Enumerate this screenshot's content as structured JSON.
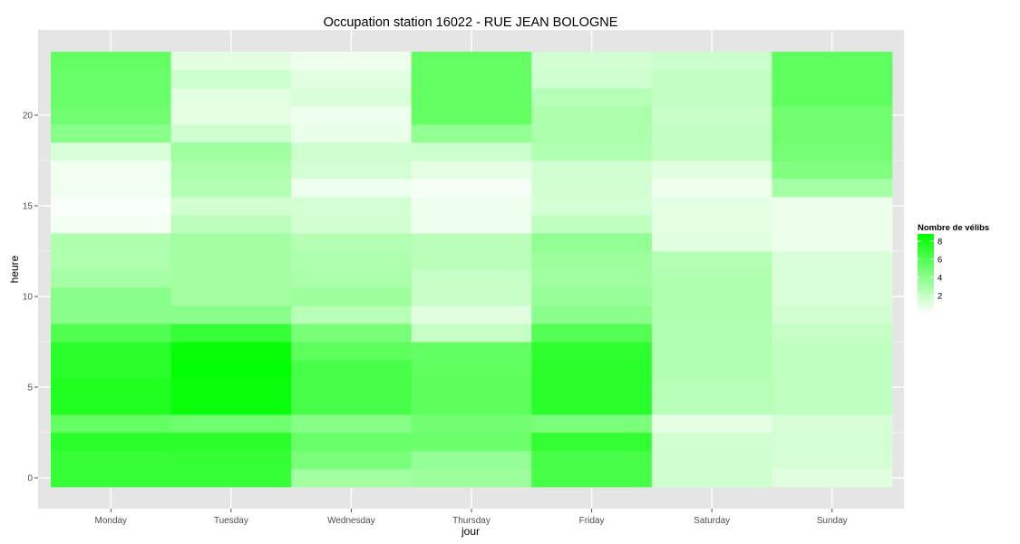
{
  "chart_data": {
    "type": "heatmap",
    "title": "Occupation station 16022 - RUE JEAN BOLOGNE",
    "xlabel": "jour",
    "ylabel": "heure",
    "x": [
      "Monday",
      "Tuesday",
      "Wednesday",
      "Thursday",
      "Friday",
      "Saturday",
      "Sunday"
    ],
    "y": [
      0,
      1,
      2,
      3,
      4,
      5,
      6,
      7,
      8,
      9,
      10,
      11,
      12,
      13,
      14,
      15,
      16,
      17,
      18,
      19,
      20,
      21,
      22,
      23
    ],
    "y_ticks": [
      0,
      5,
      10,
      15,
      20
    ],
    "ylim": [
      -0.5,
      23.5
    ],
    "grid": true,
    "values": [
      [
        6.9,
        6.9,
        3.2,
        3.4,
        6.3,
        1.7,
        1.1
      ],
      [
        6.9,
        7.0,
        4.6,
        3.7,
        6.3,
        1.7,
        1.4
      ],
      [
        7.3,
        7.3,
        5.2,
        5.1,
        7.1,
        1.6,
        1.5
      ],
      [
        5.4,
        5.0,
        4.2,
        4.9,
        4.6,
        0.9,
        1.4
      ],
      [
        7.7,
        8.5,
        6.4,
        5.6,
        7.3,
        2.5,
        2.2
      ],
      [
        7.7,
        8.5,
        6.4,
        5.6,
        7.3,
        2.5,
        2.2
      ],
      [
        7.3,
        8.7,
        6.4,
        5.5,
        7.3,
        2.7,
        2.2
      ],
      [
        7.3,
        8.6,
        5.6,
        5.4,
        7.2,
        2.7,
        2.2
      ],
      [
        6.0,
        6.9,
        4.7,
        2.0,
        5.9,
        2.7,
        2.0
      ],
      [
        4.1,
        4.1,
        2.5,
        1.1,
        4.0,
        2.8,
        1.6
      ],
      [
        4.1,
        3.2,
        3.4,
        1.9,
        3.6,
        2.8,
        1.3
      ],
      [
        3.1,
        3.2,
        2.9,
        2.0,
        3.3,
        2.8,
        1.3
      ],
      [
        2.8,
        3.2,
        2.8,
        2.4,
        3.4,
        2.6,
        1.3
      ],
      [
        2.8,
        3.2,
        2.6,
        2.4,
        3.8,
        1.1,
        0.7
      ],
      [
        0.4,
        2.3,
        1.6,
        0.6,
        2.2,
        0.9,
        0.7
      ],
      [
        0.2,
        1.6,
        1.5,
        0.6,
        1.5,
        0.9,
        0.7
      ],
      [
        0.5,
        2.6,
        0.6,
        0.3,
        1.6,
        0.6,
        3.1
      ],
      [
        0.5,
        2.9,
        1.5,
        0.9,
        1.6,
        1.0,
        4.4
      ],
      [
        1.3,
        3.3,
        1.7,
        1.8,
        2.7,
        2.1,
        4.8
      ],
      [
        4.1,
        1.7,
        0.8,
        3.8,
        2.9,
        2.1,
        4.9
      ],
      [
        4.9,
        0.9,
        0.6,
        5.4,
        2.9,
        1.9,
        4.9
      ],
      [
        5.2,
        1.0,
        1.3,
        5.4,
        2.5,
        2.1,
        5.5
      ],
      [
        5.2,
        1.8,
        1.0,
        5.4,
        1.7,
        2.1,
        5.5
      ],
      [
        5.4,
        1.0,
        0.6,
        5.4,
        1.5,
        1.8,
        5.5
      ]
    ],
    "legend": {
      "title": "Nombre de vélibs",
      "ticks": [
        2,
        4,
        6,
        8
      ],
      "range": [
        0.0,
        8.8
      ],
      "low_color": "#ffffff",
      "high_color": "#00ff00",
      "position": "right"
    },
    "colors": {
      "panel_background": "#e5e5e5",
      "gridline": "#ffffff"
    }
  }
}
